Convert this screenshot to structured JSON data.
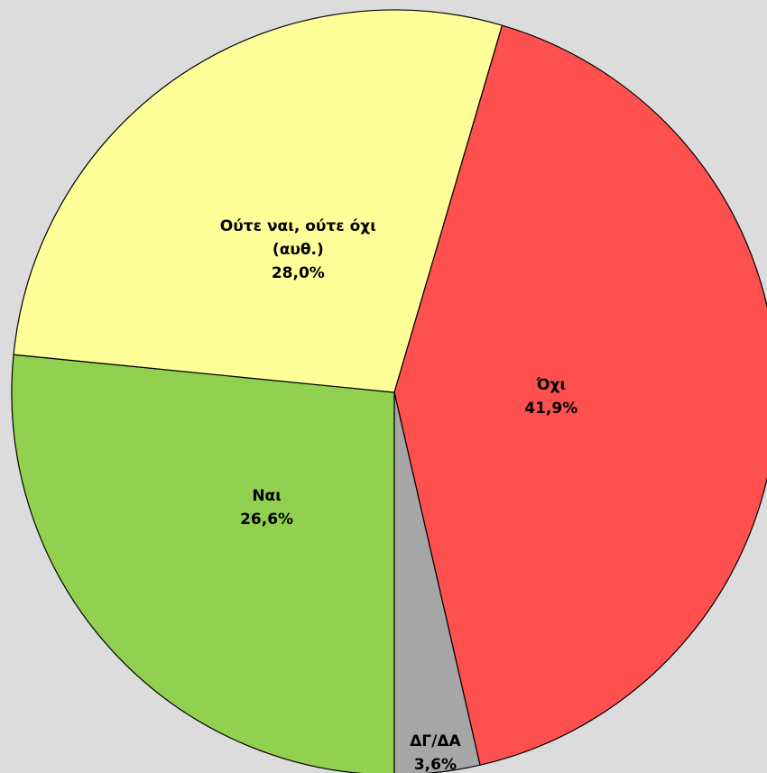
{
  "chart_data": {
    "type": "pie",
    "categories": [
      "Ναι",
      "Ούτε ναι, ούτε όχι (αυθ.)",
      "Όχι",
      "ΔΓ/ΔΑ"
    ],
    "values": [
      26.6,
      28.0,
      41.9,
      3.6
    ],
    "value_labels": [
      "26,6%",
      "28,0%",
      "41,9%",
      "3,6%"
    ],
    "colors": [
      "#92d050",
      "#ffff99",
      "#ff5050",
      "#a6a6a6"
    ]
  }
}
